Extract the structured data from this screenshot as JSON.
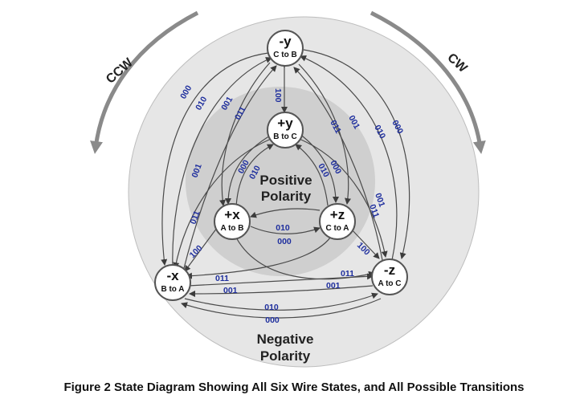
{
  "caption": "Figure 2 State Diagram Showing All Six Wire States, and All Possible Transitions",
  "regions": {
    "positive": [
      "Positive",
      "Polarity"
    ],
    "negative": [
      "Negative",
      "Polarity"
    ]
  },
  "directions": {
    "ccw": "CCW",
    "cw": "CW"
  },
  "states": [
    {
      "id": "ny",
      "main": "-y",
      "sub": "C to B"
    },
    {
      "id": "py",
      "main": "+y",
      "sub": "B to C"
    },
    {
      "id": "px",
      "main": "+x",
      "sub": "A to B"
    },
    {
      "id": "pz",
      "main": "+z",
      "sub": "C to A"
    },
    {
      "id": "nx",
      "main": "-x",
      "sub": "B to A"
    },
    {
      "id": "nz",
      "main": "-z",
      "sub": "A to C"
    }
  ],
  "transition_labels": [
    {
      "id": "t1",
      "text": "100"
    },
    {
      "id": "t2",
      "text": "000"
    },
    {
      "id": "t3",
      "text": "010"
    },
    {
      "id": "t4",
      "text": "001"
    },
    {
      "id": "t5",
      "text": "011"
    },
    {
      "id": "t6",
      "text": "001"
    },
    {
      "id": "t7",
      "text": "011"
    },
    {
      "id": "t8",
      "text": "010"
    },
    {
      "id": "t9",
      "text": "000"
    },
    {
      "id": "t10",
      "text": "001"
    },
    {
      "id": "t11",
      "text": "011"
    },
    {
      "id": "t12",
      "text": "000"
    },
    {
      "id": "t13",
      "text": "010"
    },
    {
      "id": "t14",
      "text": "010"
    },
    {
      "id": "t15",
      "text": "000"
    },
    {
      "id": "t16",
      "text": "001"
    },
    {
      "id": "t17",
      "text": "011"
    },
    {
      "id": "t18",
      "text": "100"
    },
    {
      "id": "t19",
      "text": "100"
    },
    {
      "id": "t20",
      "text": "011"
    },
    {
      "id": "t21",
      "text": "001"
    },
    {
      "id": "t22",
      "text": "011"
    },
    {
      "id": "t23",
      "text": "001"
    },
    {
      "id": "t24",
      "text": "010"
    },
    {
      "id": "t25",
      "text": "000"
    }
  ]
}
